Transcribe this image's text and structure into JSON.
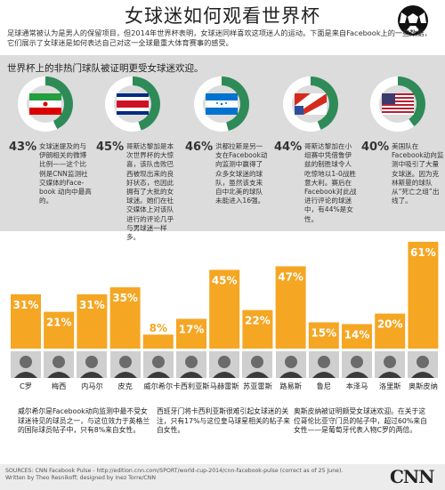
{
  "title": "女球迷如何观看世界杯",
  "intro": "足球通常被认为是男人的保留项目，但2014年世界杯表明，女球迷同样喜欢这项迷人的运动。下面是来自Facebook上的一些数据，它们展示了女球迷是如何表达自己对这一全球最重大体育赛事的感受。",
  "section_title": "世界杯上的非热门球队被证明更受女球迷欢迎。",
  "teams": [
    {
      "flag": "iran",
      "color": "#2e8b57",
      "percent": "43%",
      "desc": "女球迷提及的与伊朗相关的微博比例——这个比例是CNN监测社交媒体的Face-book 动向中最高的。"
    },
    {
      "flag": "costarica",
      "color": "#2e8b57",
      "percent": "45%",
      "desc": "哥斯达黎加是本次世界杯的大惊喜，该队击败巴西被现出来的良好状态，也因此拥有了大批的女球迷。她们在社交媒体上对该队进行的评论几乎与男球迷一样多。"
    },
    {
      "flag": "honduras",
      "color": "#2e8b57",
      "percent": "46%",
      "desc": "洪都拉斯是另一支在Facebook动向监测中赢得了众多女球迷的球队，虽然该支来自中北美的球队未能进入16强。"
    },
    {
      "flag": "usa",
      "color": "#2e8b57",
      "percent": "44%",
      "desc": "哥斯达黎加在小组赛中凭借鲁伊兹的制胜球令人吃惊地以1-0战胜意大利。赛后在Facebook对此战进行评论的球迷中，有44%是女性。"
    },
    {
      "flag": "usa2",
      "color": "#2e8b57",
      "percent": "40%",
      "desc": "美国队在Facebook动向监测中吸引了大量女球迷。因为克林斯曼的球队从“死亡之组”出线了。"
    }
  ],
  "chart_data": {
    "type": "bar",
    "categories": [
      "C罗",
      "梅西",
      "内马尔",
      "皮克",
      "威尔希尔",
      "卡西利亚斯",
      "马赫雷斯",
      "苏亚雷斯",
      "路易斯",
      "鲁尼",
      "本泽马",
      "洛里斯",
      "奥斯皮纳"
    ],
    "values": [
      31,
      21,
      31,
      35,
      8,
      17,
      45,
      22,
      47,
      15,
      14,
      20,
      61
    ],
    "labels": [
      "31%",
      "21%",
      "31%",
      "35%",
      "8%",
      "17%",
      "45%",
      "22%",
      "47%",
      "15%",
      "14%",
      "20%",
      "61%"
    ],
    "ylim": [
      0,
      65
    ]
  },
  "notes": [
    "威尔希尔是Facebook动向监测中最不受女球迷待见的球员之一，与这位效力于英格兰的国际球员帖子中，只有8%来自女性。",
    "西班牙门将卡西利亚斯很难引起女球迷的关注，只有17%与这位皇马球星相关的帖子来自女性。",
    "奥斯皮纳被证明颇受女球迷欢迎。在关于这位哥伦比亚守门员的帖子中，超过60%来自女性——是葡萄牙代表人物C罗的两倍。"
  ],
  "sources": "SOURCES: CNN Facebook Pulse - http://edition.cnn.com/SPORT/world-cup-2014/cnn-facebook-pulse (correct as of 25 June).",
  "credits": "Written by Theo Resnikoff; designed by Inez Torre/CNN",
  "logo": "CNN"
}
